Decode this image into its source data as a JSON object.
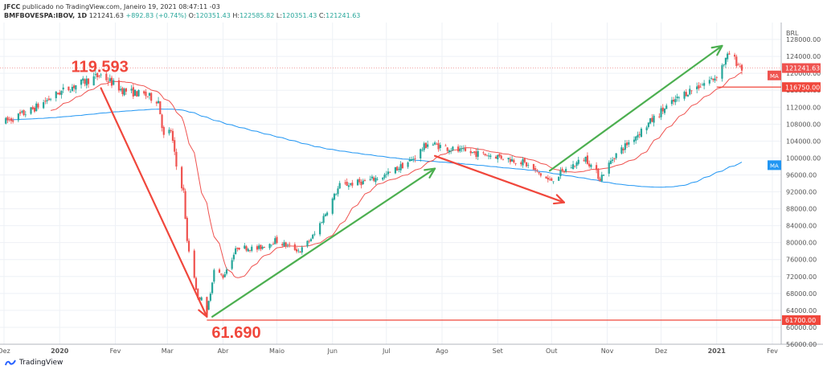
{
  "header": {
    "publisher": "JFCC",
    "published_text": "publicado no TradingView.com, Janeiro 19, 2021 08:47:11 -03",
    "symbol": "BMFBOVESPA:IBOV, 1D",
    "last": "121241.63",
    "change": "+892.83 (+0.74%)",
    "o_label": "O:",
    "o": "120351.43",
    "h_label": "H:",
    "h": "122585.82",
    "l_label": "L:",
    "l": "120351.43",
    "c_label": "C:",
    "c": "121241.63"
  },
  "footer": {
    "brand": "TradingView"
  },
  "colors": {
    "up": "#26a69a",
    "down": "#ef5350",
    "ma_fast": "#ef5350",
    "ma_slow": "#2196f3",
    "arrow_red": "#f0473c",
    "arrow_green": "#4caf50",
    "grid": "#eef1f6"
  },
  "chart_data": {
    "type": "candlestick",
    "currency_label": "BRL",
    "ylim": [
      56000,
      132000
    ],
    "y_ticks": [
      56000,
      60000,
      64000,
      68000,
      72000,
      76000,
      80000,
      84000,
      88000,
      92000,
      96000,
      100000,
      104000,
      108000,
      112000,
      116000,
      120000,
      124000,
      128000
    ],
    "x_ticks": [
      "Dez",
      "2020",
      "Fev",
      "Mar",
      "Abr",
      "Maio",
      "Jun",
      "Jul",
      "Ago",
      "Set",
      "Out",
      "Nov",
      "Dez",
      "2021",
      "Fev"
    ],
    "path_key": [
      [
        "2019-12-01",
        108500
      ],
      [
        "2019-12-15",
        111000
      ],
      [
        "2020-01-01",
        115500
      ],
      [
        "2020-01-10",
        117200
      ],
      [
        "2020-01-24",
        119593
      ],
      [
        "2020-02-05",
        116000
      ],
      [
        "2020-02-18",
        114800
      ],
      [
        "2020-02-25",
        113500
      ],
      [
        "2020-02-28",
        105000
      ],
      [
        "2020-03-03",
        106500
      ],
      [
        "2020-03-06",
        98000
      ],
      [
        "2020-03-10",
        92000
      ],
      [
        "2020-03-12",
        80000
      ],
      [
        "2020-03-16",
        72000
      ],
      [
        "2020-03-18",
        66500
      ],
      [
        "2020-03-20",
        67500
      ],
      [
        "2020-03-23",
        63500
      ],
      [
        "2020-03-27",
        73500
      ],
      [
        "2020-04-01",
        72000
      ],
      [
        "2020-04-09",
        79000
      ],
      [
        "2020-04-20",
        78500
      ],
      [
        "2020-04-30",
        80500
      ],
      [
        "2020-05-14",
        78000
      ],
      [
        "2020-05-22",
        82000
      ],
      [
        "2020-06-05",
        93500
      ],
      [
        "2020-06-20",
        94500
      ],
      [
        "2020-07-01",
        96000
      ],
      [
        "2020-07-15",
        99500
      ],
      [
        "2020-07-24",
        103500
      ],
      [
        "2020-07-31",
        102800
      ],
      [
        "2020-08-12",
        101500
      ],
      [
        "2020-08-31",
        100500
      ],
      [
        "2020-09-15",
        99000
      ],
      [
        "2020-09-30",
        94500
      ],
      [
        "2020-10-08",
        97000
      ],
      [
        "2020-10-20",
        100000
      ],
      [
        "2020-10-28",
        95200
      ],
      [
        "2020-11-05",
        100500
      ],
      [
        "2020-11-20",
        106500
      ],
      [
        "2020-12-01",
        111000
      ],
      [
        "2020-12-15",
        115500
      ],
      [
        "2020-12-31",
        119000
      ],
      [
        "2021-01-08",
        124500
      ],
      [
        "2021-01-15",
        121241
      ]
    ],
    "indicators": [
      {
        "name": "MA",
        "color": "#ef5350",
        "label_value": "116750.00"
      },
      {
        "name": "MA",
        "color": "#2196f3"
      }
    ],
    "last_price": "121241.63",
    "annotations": [
      {
        "text": "119.593",
        "x": "2020-01-24",
        "y": 119593
      },
      {
        "text": "61.690",
        "x": "2020-03-23",
        "y": 61690
      }
    ],
    "support_line": {
      "label": "61700.00",
      "value": 61700
    },
    "resistance_line": {
      "label": "116750.00",
      "value": 116750
    },
    "arrows": [
      {
        "color": "red",
        "from": [
          "2020-01-24",
          116500
        ],
        "to": [
          "2020-03-23",
          62500
        ]
      },
      {
        "color": "green",
        "from": [
          "2020-03-26",
          62500
        ],
        "to": [
          "2020-07-28",
          97500
        ]
      },
      {
        "color": "red",
        "from": [
          "2020-07-28",
          100500
        ],
        "to": [
          "2020-10-08",
          89500
        ]
      },
      {
        "color": "green",
        "from": [
          "2020-09-30",
          97000
        ],
        "to": [
          "2021-01-04",
          126500
        ]
      }
    ]
  }
}
